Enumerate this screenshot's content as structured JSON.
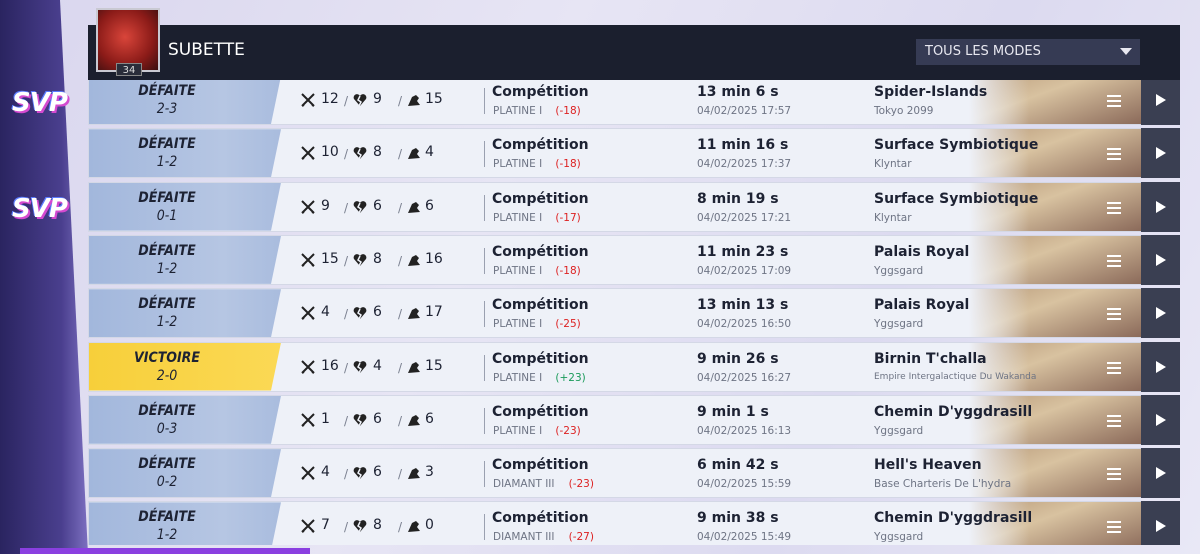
{
  "header": {
    "player": "SUBETTE",
    "level": "34",
    "mode_filter": "TOUS LES MODES"
  },
  "sidebar": {
    "logos": [
      "SVP",
      "SVP"
    ]
  },
  "matches": [
    {
      "result": "DÉFAITE",
      "score": "2-3",
      "kills": 12,
      "deaths": 9,
      "assists": 15,
      "mode": "Compétition",
      "rank": "PLATINE I",
      "delta": "(-18)",
      "duration": "13 min 6 s",
      "date": "04/02/2025 17:57",
      "map": "Spider-Islands",
      "region": "Tokyo 2099"
    },
    {
      "result": "DÉFAITE",
      "score": "1-2",
      "kills": 10,
      "deaths": 8,
      "assists": 4,
      "mode": "Compétition",
      "rank": "PLATINE I",
      "delta": "(-18)",
      "duration": "11 min 16 s",
      "date": "04/02/2025 17:37",
      "map": "Surface Symbiotique",
      "region": "Klyntar"
    },
    {
      "result": "DÉFAITE",
      "score": "0-1",
      "kills": 9,
      "deaths": 6,
      "assists": 6,
      "mode": "Compétition",
      "rank": "PLATINE I",
      "delta": "(-17)",
      "duration": "8 min 19 s",
      "date": "04/02/2025 17:21",
      "map": "Surface Symbiotique",
      "region": "Klyntar"
    },
    {
      "result": "DÉFAITE",
      "score": "1-2",
      "kills": 15,
      "deaths": 8,
      "assists": 16,
      "mode": "Compétition",
      "rank": "PLATINE I",
      "delta": "(-18)",
      "duration": "11 min 23 s",
      "date": "04/02/2025 17:09",
      "map": "Palais Royal",
      "region": "Yggsgard"
    },
    {
      "result": "DÉFAITE",
      "score": "1-2",
      "kills": 4,
      "deaths": 6,
      "assists": 17,
      "mode": "Compétition",
      "rank": "PLATINE I",
      "delta": "(-25)",
      "duration": "13 min 13 s",
      "date": "04/02/2025 16:50",
      "map": "Palais Royal",
      "region": "Yggsgard"
    },
    {
      "result": "VICTOIRE",
      "score": "2-0",
      "kills": 16,
      "deaths": 4,
      "assists": 15,
      "mode": "Compétition",
      "rank": "PLATINE I",
      "delta": "(+23)",
      "duration": "9 min 26 s",
      "date": "04/02/2025 16:27",
      "map": "Birnin T'challa",
      "region": "Empire Intergalactique Du Wakanda"
    },
    {
      "result": "DÉFAITE",
      "score": "0-3",
      "kills": 1,
      "deaths": 6,
      "assists": 6,
      "mode": "Compétition",
      "rank": "PLATINE I",
      "delta": "(-23)",
      "duration": "9 min 1 s",
      "date": "04/02/2025 16:13",
      "map": "Chemin D'yggdrasill",
      "region": "Yggsgard"
    },
    {
      "result": "DÉFAITE",
      "score": "0-2",
      "kills": 4,
      "deaths": 6,
      "assists": 3,
      "mode": "Compétition",
      "rank": "DIAMANT III",
      "delta": "(-23)",
      "duration": "6 min 42 s",
      "date": "04/02/2025 15:59",
      "map": "Hell's Heaven",
      "region": "Base Charteris De L'hydra"
    },
    {
      "result": "DÉFAITE",
      "score": "1-2",
      "kills": 7,
      "deaths": 8,
      "assists": 0,
      "mode": "Compétition",
      "rank": "DIAMANT III",
      "delta": "(-27)",
      "duration": "9 min 38 s",
      "date": "04/02/2025 15:49",
      "map": "Chemin D'yggdrasill",
      "region": "Yggsgard"
    }
  ]
}
